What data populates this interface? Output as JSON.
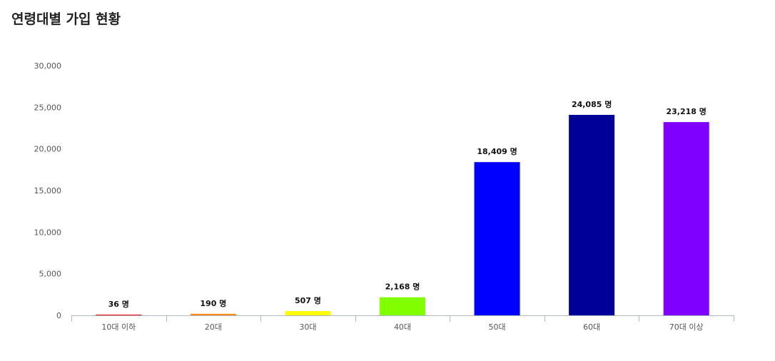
{
  "header": {
    "title": "연령대별 가입 현황"
  },
  "chart_data": {
    "type": "bar",
    "title": "연령대별 가입 현황",
    "categories": [
      "10대 이하",
      "20대",
      "30대",
      "40대",
      "50대",
      "60대",
      "70대 이상"
    ],
    "values": [
      36,
      190,
      507,
      2168,
      18409,
      24085,
      23218
    ],
    "data_labels": [
      "36 명",
      "190 명",
      "507 명",
      "2,168 명",
      "18,409 명",
      "24,085 명",
      "23,218 명"
    ],
    "colors": [
      "#ff0000",
      "#ff8c1a",
      "#ffff00",
      "#80ff00",
      "#0000ff",
      "#000099",
      "#8000ff"
    ],
    "ylim": [
      0,
      30000
    ],
    "yticks": [
      "0",
      "5,000",
      "10,000",
      "15,000",
      "20,000",
      "25,000",
      "30,000"
    ],
    "grid": false,
    "legend": "none"
  }
}
